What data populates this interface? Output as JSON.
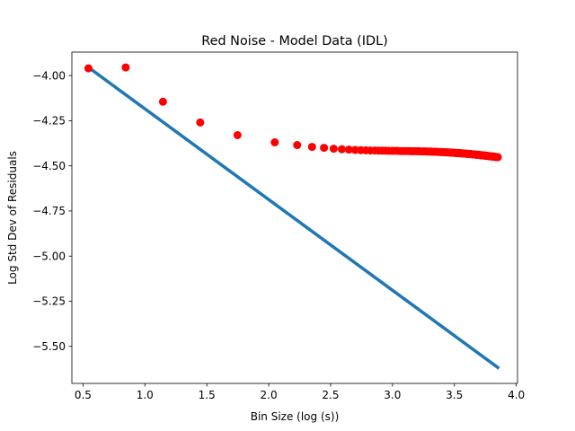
{
  "chart_data": {
    "type": "scatter",
    "title": "Red Noise - Model Data (IDL)",
    "xlabel": "Bin Size (log (s))",
    "ylabel": "Log Std Dev of Residuals",
    "xlim": [
      0.41,
      4.01
    ],
    "ylim": [
      -5.705,
      -3.87
    ],
    "grid": false,
    "legend": "none",
    "x_ticks": [
      0.5,
      1.0,
      1.5,
      2.0,
      2.5,
      3.0,
      3.5,
      4.0
    ],
    "x_tick_labels": [
      "0.5",
      "1.0",
      "1.5",
      "2.0",
      "2.5",
      "3.0",
      "3.5",
      "4.0"
    ],
    "y_ticks": [
      -4.0,
      -4.25,
      -4.5,
      -4.75,
      -5.0,
      -5.25,
      -5.5
    ],
    "y_tick_labels": [
      "−4.00",
      "−4.25",
      "−4.50",
      "−4.75",
      "−5.00",
      "−5.25",
      "−5.50"
    ],
    "series": [
      {
        "kind": "scatter",
        "color": "#ff0000",
        "x": [
          0.544,
          0.845,
          1.146,
          1.447,
          1.748,
          2.049,
          2.23,
          2.35,
          2.447,
          2.525,
          2.591,
          2.648,
          2.699,
          2.744,
          2.785,
          2.822,
          2.857,
          2.889,
          2.918,
          2.945,
          2.971,
          2.995,
          3.018,
          3.04,
          3.061,
          3.081,
          3.1,
          3.118,
          3.135,
          3.152,
          3.168,
          3.184,
          3.199,
          3.213,
          3.227,
          3.241,
          3.254,
          3.267,
          3.279,
          3.291,
          3.303,
          3.314,
          3.325,
          3.336,
          3.347,
          3.357,
          3.367,
          3.377,
          3.387,
          3.396,
          3.405,
          3.414,
          3.423,
          3.432,
          3.44,
          3.448,
          3.456,
          3.464,
          3.472,
          3.48,
          3.487,
          3.495,
          3.502,
          3.509,
          3.516,
          3.523,
          3.53,
          3.537,
          3.543,
          3.55,
          3.556,
          3.562,
          3.568,
          3.574,
          3.58,
          3.586,
          3.592,
          3.598,
          3.604,
          3.609,
          3.615,
          3.62,
          3.625,
          3.631,
          3.636,
          3.641,
          3.646,
          3.651,
          3.656,
          3.661,
          3.666,
          3.671,
          3.676,
          3.681,
          3.685,
          3.69,
          3.695,
          3.699,
          3.704,
          3.708,
          3.713,
          3.717,
          3.721,
          3.726,
          3.73,
          3.734,
          3.738,
          3.742,
          3.747,
          3.751,
          3.755,
          3.759,
          3.763,
          3.767,
          3.771,
          3.775,
          3.779,
          3.783,
          3.787,
          3.791,
          3.795,
          3.799,
          3.803,
          3.807,
          3.811,
          3.815,
          3.819,
          3.823,
          3.827,
          3.831,
          3.835,
          3.839,
          3.843,
          3.847,
          3.851
        ],
        "y": [
          -3.96,
          -3.955,
          -4.145,
          -4.26,
          -4.33,
          -4.37,
          -4.385,
          -4.395,
          -4.4,
          -4.405,
          -4.408,
          -4.41,
          -4.412,
          -4.413,
          -4.414,
          -4.415,
          -4.415,
          -4.416,
          -4.416,
          -4.416,
          -4.417,
          -4.417,
          -4.417,
          -4.417,
          -4.418,
          -4.418,
          -4.418,
          -4.418,
          -4.418,
          -4.419,
          -4.419,
          -4.419,
          -4.419,
          -4.419,
          -4.42,
          -4.42,
          -4.42,
          -4.42,
          -4.421,
          -4.421,
          -4.421,
          -4.421,
          -4.422,
          -4.422,
          -4.422,
          -4.422,
          -4.423,
          -4.423,
          -4.423,
          -4.424,
          -4.424,
          -4.424,
          -4.425,
          -4.425,
          -4.425,
          -4.426,
          -4.426,
          -4.426,
          -4.427,
          -4.427,
          -4.427,
          -4.428,
          -4.428,
          -4.428,
          -4.429,
          -4.429,
          -4.429,
          -4.43,
          -4.43,
          -4.43,
          -4.431,
          -4.431,
          -4.431,
          -4.432,
          -4.432,
          -4.432,
          -4.433,
          -4.433,
          -4.433,
          -4.434,
          -4.434,
          -4.434,
          -4.435,
          -4.435,
          -4.435,
          -4.436,
          -4.436,
          -4.436,
          -4.437,
          -4.437,
          -4.437,
          -4.438,
          -4.438,
          -4.438,
          -4.439,
          -4.439,
          -4.439,
          -4.44,
          -4.44,
          -4.44,
          -4.441,
          -4.441,
          -4.441,
          -4.442,
          -4.442,
          -4.442,
          -4.443,
          -4.443,
          -4.443,
          -4.444,
          -4.444,
          -4.444,
          -4.445,
          -4.445,
          -4.445,
          -4.446,
          -4.446,
          -4.446,
          -4.447,
          -4.447,
          -4.447,
          -4.448,
          -4.448,
          -4.448,
          -4.449,
          -4.449,
          -4.449,
          -4.45,
          -4.45,
          -4.45,
          -4.451,
          -4.451,
          -4.451,
          -4.452,
          -4.452
        ]
      },
      {
        "kind": "line",
        "color": "#1f77b4",
        "x": [
          0.544,
          3.851
        ],
        "y": [
          -3.955,
          -5.617
        ]
      }
    ]
  }
}
